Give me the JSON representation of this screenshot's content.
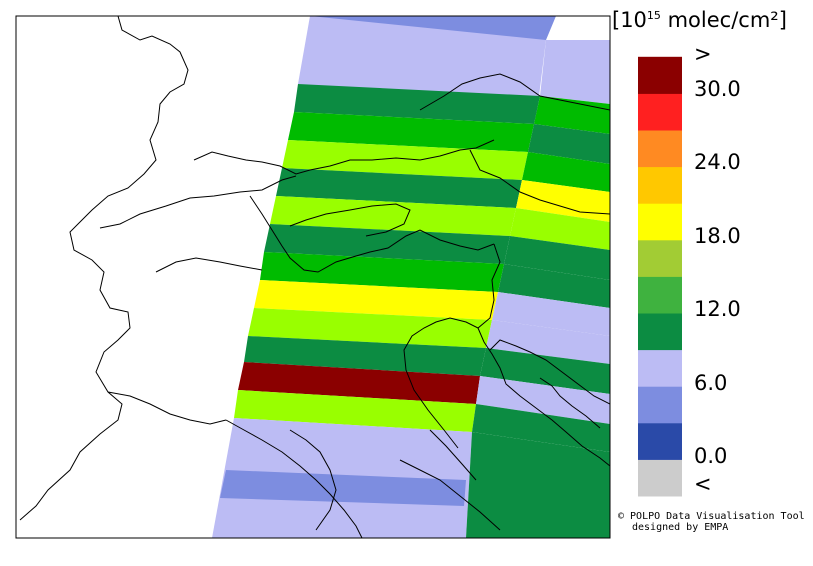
{
  "unit": {
    "prefix": "[10",
    "exponent": "15",
    "suffix": " molec/cm²]"
  },
  "legend": {
    "colors": [
      "#cccccc",
      "#2a4aa8",
      "#7d8de0",
      "#bcbcf4",
      "#0c8c42",
      "#3fb23f",
      "#a2cc34",
      "#ffff00",
      "#ffc800",
      "#ff8a22",
      "#ff2020",
      "#8b0000"
    ],
    "tick_labels": [
      "<",
      "0.0",
      "6.0",
      "12.0",
      "18.0",
      "24.0",
      "30.0",
      ">"
    ]
  },
  "credit": {
    "line1": "© POLPO Data Visualisation Tool",
    "line2": "designed by EMPA"
  },
  "swath": {
    "colors": {
      "dark_green": "#0c8c42",
      "green": "#00bb00",
      "lime": "#99ff00",
      "yellow": "#ffff00",
      "dark_red": "#8b0000",
      "light_blue": "#bcbcf4",
      "mid_blue": "#7d8de0"
    }
  }
}
